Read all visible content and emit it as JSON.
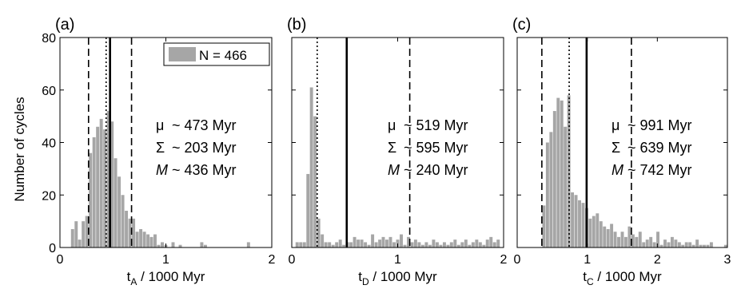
{
  "figure": {
    "ylabel": "Number of cycles",
    "legend_text": "N = 466"
  },
  "chart_data": [
    {
      "type": "bar",
      "panel_label": "(a)",
      "xlabel_main": "t",
      "xlabel_sub": "A",
      "xlabel_rest": " / 1000 Myr",
      "ylabel": "Number of cycles",
      "xlim": [
        0,
        2
      ],
      "ylim": [
        0,
        80
      ],
      "xticks": [
        0,
        1,
        2
      ],
      "yticks": [
        0,
        20,
        40,
        60,
        80
      ],
      "bin_width": 0.0339,
      "bin_centers": [
        0.119,
        0.153,
        0.186,
        0.22,
        0.254,
        0.288,
        0.322,
        0.356,
        0.39,
        0.424,
        0.458,
        0.492,
        0.525,
        0.559,
        0.593,
        0.627,
        0.661,
        0.695,
        0.729,
        0.763,
        0.797,
        0.831,
        0.864,
        0.898,
        0.932,
        0.966,
        1.0,
        1.034,
        1.068,
        1.102,
        1.136,
        1.169,
        1.203,
        1.237,
        1.271,
        1.305,
        1.339,
        1.373,
        1.407,
        1.441,
        1.475,
        1.508,
        1.542,
        1.576,
        1.61,
        1.644,
        1.678,
        1.712,
        1.746,
        1.78
      ],
      "counts": [
        7,
        10,
        3,
        10,
        12,
        36,
        42,
        46,
        49,
        45,
        52,
        48,
        34,
        27,
        20,
        14,
        11,
        11,
        6,
        7,
        6,
        5,
        4,
        5,
        1,
        2,
        1,
        0,
        2,
        0,
        1,
        0,
        0,
        0,
        0,
        0,
        2,
        1,
        0,
        0,
        0,
        0,
        0,
        0,
        0,
        0,
        0,
        0,
        0,
        2
      ],
      "stats": {
        "mu_symbol": "μ",
        "mu_text": "~ 473 Myr",
        "sigma_symbol": "Σ",
        "sigma_text": "~ 203 Myr",
        "m_symbol": "M",
        "m_text": "~ 436 Myr"
      },
      "vlines": {
        "mean": 0.473,
        "median": 0.436,
        "mean_minus_sigma": 0.27,
        "mean_plus_sigma": 0.676
      },
      "has_legend": true
    },
    {
      "type": "bar",
      "panel_label": "(b)",
      "xlabel_main": "t",
      "xlabel_sub": "D",
      "xlabel_rest": " / 1000 Myr",
      "xlim": [
        0,
        2
      ],
      "ylim": [
        0,
        80
      ],
      "xticks": [
        0,
        1,
        2
      ],
      "yticks": [
        0,
        20,
        40,
        60,
        80
      ],
      "bin_width": 0.0339,
      "bin_centers": [
        0.051,
        0.085,
        0.119,
        0.153,
        0.186,
        0.22,
        0.254,
        0.288,
        0.322,
        0.356,
        0.39,
        0.424,
        0.458,
        0.492,
        0.525,
        0.559,
        0.593,
        0.627,
        0.661,
        0.695,
        0.729,
        0.763,
        0.797,
        0.831,
        0.864,
        0.898,
        0.932,
        0.966,
        1.0,
        1.034,
        1.068,
        1.102,
        1.136,
        1.169,
        1.203,
        1.237,
        1.271,
        1.305,
        1.339,
        1.373,
        1.407,
        1.441,
        1.475,
        1.508,
        1.542,
        1.576,
        1.61,
        1.644,
        1.678,
        1.712,
        1.746,
        1.78,
        1.814,
        1.847,
        1.881,
        1.915,
        1.949
      ],
      "counts": [
        2,
        2,
        2,
        28,
        61,
        50,
        11,
        5,
        2,
        2,
        1,
        2,
        3,
        1,
        2,
        2,
        4,
        3,
        3,
        2,
        1,
        5,
        2,
        3,
        4,
        3,
        4,
        2,
        3,
        5,
        1,
        4,
        2,
        3,
        2,
        1,
        2,
        1,
        3,
        2,
        1,
        2,
        1,
        2,
        3,
        1,
        2,
        3,
        1,
        2,
        3,
        2,
        1,
        3,
        4,
        2,
        3
      ],
      "stats": {
        "mu_symbol": "μ",
        "mu_text": "~ 519 Myr",
        "sigma_symbol": "Σ",
        "sigma_text": "~ 595 Myr",
        "m_symbol": "M",
        "m_text": "~ 240 Myr"
      },
      "vlines": {
        "mean": 0.519,
        "median": 0.24,
        "mean_plus_sigma": 1.114
      },
      "has_legend": false
    },
    {
      "type": "bar",
      "panel_label": "(c)",
      "xlabel_main": "t",
      "xlabel_sub": "C",
      "xlabel_rest": " / 1000 Myr",
      "xlim": [
        0,
        3
      ],
      "ylim": [
        0,
        80
      ],
      "xticks": [
        0,
        1,
        2,
        3
      ],
      "yticks": [
        0,
        20,
        40,
        60,
        80
      ],
      "bin_width": 0.0508,
      "bin_centers": [
        0.381,
        0.432,
        0.483,
        0.534,
        0.585,
        0.636,
        0.686,
        0.737,
        0.788,
        0.839,
        0.89,
        0.941,
        0.992,
        1.042,
        1.093,
        1.144,
        1.195,
        1.246,
        1.297,
        1.347,
        1.398,
        1.449,
        1.5,
        1.551,
        1.602,
        1.653,
        1.703,
        1.754,
        1.805,
        1.856,
        1.907,
        1.958,
        2.008,
        2.059,
        2.11,
        2.161,
        2.212,
        2.263,
        2.314,
        2.364,
        2.415,
        2.466,
        2.517,
        2.568,
        2.619,
        2.669,
        2.72,
        2.771,
        2.822,
        2.873,
        2.924,
        2.975
      ],
      "counts": [
        16,
        40,
        44,
        52,
        57,
        56,
        46,
        58,
        21,
        20,
        18,
        17,
        15,
        11,
        12,
        13,
        10,
        8,
        7,
        9,
        6,
        4,
        6,
        4,
        8,
        5,
        4,
        6,
        2,
        3,
        4,
        2,
        6,
        1,
        3,
        2,
        4,
        3,
        2,
        1,
        2,
        2,
        1,
        3,
        1,
        1,
        1,
        2,
        0,
        0,
        0,
        1
      ],
      "stats": {
        "mu_symbol": "μ",
        "mu_text": "~ 991 Myr",
        "sigma_symbol": "Σ",
        "sigma_text": "~ 639 Myr",
        "m_symbol": "M",
        "m_text": "~ 742 Myr"
      },
      "vlines": {
        "mean": 0.991,
        "median": 0.742,
        "mean_minus_sigma": 0.352,
        "mean_plus_sigma": 1.63
      },
      "has_legend": false
    }
  ]
}
